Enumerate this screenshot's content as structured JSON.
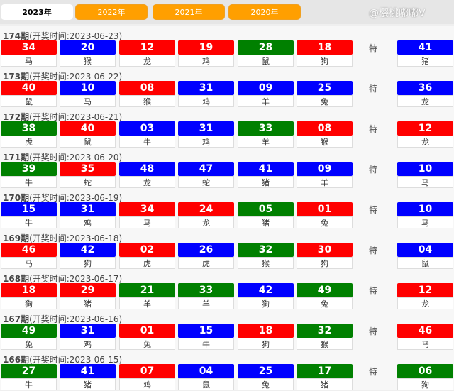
{
  "tabs": [
    "2023年",
    "2022年",
    "2021年",
    "2020年"
  ],
  "active_tab": 0,
  "special_label": "特",
  "colors": {
    "red": "#ff0000",
    "blue": "#0000ff",
    "green": "#008000"
  },
  "watermark": "@樱桃嘟嘟V",
  "draws": [
    {
      "period": "174期",
      "time": "(开奖时间:2023-06-23)",
      "balls": [
        [
          "34",
          "马",
          "red"
        ],
        [
          "20",
          "猴",
          "blue"
        ],
        [
          "12",
          "龙",
          "red"
        ],
        [
          "19",
          "鸡",
          "red"
        ],
        [
          "28",
          "鼠",
          "green"
        ],
        [
          "18",
          "狗",
          "red"
        ]
      ],
      "special": [
        "41",
        "猪",
        "blue"
      ]
    },
    {
      "period": "173期",
      "time": "(开奖时间:2023-06-22)",
      "balls": [
        [
          "40",
          "鼠",
          "red"
        ],
        [
          "10",
          "马",
          "blue"
        ],
        [
          "08",
          "猴",
          "red"
        ],
        [
          "31",
          "鸡",
          "blue"
        ],
        [
          "09",
          "羊",
          "blue"
        ],
        [
          "25",
          "兔",
          "blue"
        ]
      ],
      "special": [
        "36",
        "龙",
        "blue"
      ]
    },
    {
      "period": "172期",
      "time": "(开奖时间:2023-06-21)",
      "balls": [
        [
          "38",
          "虎",
          "green"
        ],
        [
          "40",
          "鼠",
          "red"
        ],
        [
          "03",
          "牛",
          "blue"
        ],
        [
          "31",
          "鸡",
          "blue"
        ],
        [
          "33",
          "羊",
          "green"
        ],
        [
          "08",
          "猴",
          "red"
        ]
      ],
      "special": [
        "12",
        "龙",
        "red"
      ]
    },
    {
      "period": "171期",
      "time": "(开奖时间:2023-06-20)",
      "balls": [
        [
          "39",
          "牛",
          "green"
        ],
        [
          "35",
          "蛇",
          "red"
        ],
        [
          "48",
          "龙",
          "blue"
        ],
        [
          "47",
          "蛇",
          "blue"
        ],
        [
          "41",
          "猪",
          "blue"
        ],
        [
          "09",
          "羊",
          "blue"
        ]
      ],
      "special": [
        "10",
        "马",
        "blue"
      ]
    },
    {
      "period": "170期",
      "time": "(开奖时间:2023-06-19)",
      "balls": [
        [
          "15",
          "牛",
          "blue"
        ],
        [
          "31",
          "鸡",
          "blue"
        ],
        [
          "34",
          "马",
          "red"
        ],
        [
          "24",
          "龙",
          "red"
        ],
        [
          "05",
          "猪",
          "green"
        ],
        [
          "01",
          "兔",
          "red"
        ]
      ],
      "special": [
        "10",
        "马",
        "blue"
      ]
    },
    {
      "period": "169期",
      "time": "(开奖时间:2023-06-18)",
      "balls": [
        [
          "46",
          "马",
          "red"
        ],
        [
          "42",
          "狗",
          "blue"
        ],
        [
          "02",
          "虎",
          "red"
        ],
        [
          "26",
          "虎",
          "blue"
        ],
        [
          "32",
          "猴",
          "green"
        ],
        [
          "30",
          "狗",
          "red"
        ]
      ],
      "special": [
        "04",
        "鼠",
        "blue"
      ]
    },
    {
      "period": "168期",
      "time": "(开奖时间:2023-06-17)",
      "balls": [
        [
          "18",
          "狗",
          "red"
        ],
        [
          "29",
          "猪",
          "red"
        ],
        [
          "21",
          "羊",
          "green"
        ],
        [
          "33",
          "羊",
          "green"
        ],
        [
          "42",
          "狗",
          "blue"
        ],
        [
          "49",
          "兔",
          "green"
        ]
      ],
      "special": [
        "12",
        "龙",
        "red"
      ]
    },
    {
      "period": "167期",
      "time": "(开奖时间:2023-06-16)",
      "balls": [
        [
          "49",
          "兔",
          "green"
        ],
        [
          "31",
          "鸡",
          "blue"
        ],
        [
          "01",
          "兔",
          "red"
        ],
        [
          "15",
          "牛",
          "blue"
        ],
        [
          "18",
          "狗",
          "red"
        ],
        [
          "32",
          "猴",
          "green"
        ]
      ],
      "special": [
        "46",
        "马",
        "red"
      ]
    },
    {
      "period": "166期",
      "time": "(开奖时间:2023-06-15)",
      "balls": [
        [
          "27",
          "牛",
          "green"
        ],
        [
          "41",
          "猪",
          "blue"
        ],
        [
          "07",
          "鸡",
          "red"
        ],
        [
          "04",
          "鼠",
          "blue"
        ],
        [
          "25",
          "兔",
          "blue"
        ],
        [
          "17",
          "猪",
          "green"
        ]
      ],
      "special": [
        "06",
        "狗",
        "green"
      ]
    }
  ]
}
